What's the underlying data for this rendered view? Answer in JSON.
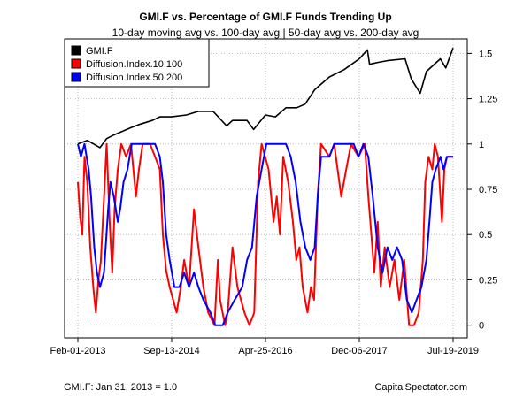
{
  "chart_data": {
    "type": "line",
    "title": "GMI.F vs. Percentage of GMI.F Funds Trending Up",
    "subtitle": "10-day moving avg vs. 100-day avg | 50-day avg vs. 200-day avg",
    "x_tick_labels": [
      "Feb-01-2013",
      "Sep-13-2014",
      "Apr-25-2016",
      "Dec-06-2017",
      "Jul-19-2019"
    ],
    "y_ticks": [
      0,
      0.25,
      0.5,
      0.75,
      1,
      1.25,
      1.5
    ],
    "y_tick_labels": [
      "0",
      "0.25",
      "0.5",
      "0.75",
      "1",
      "1.25",
      "1.5"
    ],
    "ylim": [
      -0.07,
      1.58
    ],
    "xlim": [
      "2013-02-01",
      "2019-07-19"
    ],
    "grid": true,
    "legend_position": "top-left",
    "footnote_left": "GMI.F: Jan 31, 2013 = 1.0",
    "footnote_right": "CapitalSpectator.com",
    "series": [
      {
        "name": "GMI.F",
        "color": "#000000",
        "points": [
          [
            "2013-02-01",
            1.0
          ],
          [
            "2013-04-01",
            1.02
          ],
          [
            "2013-06-20",
            0.98
          ],
          [
            "2013-08-01",
            1.03
          ],
          [
            "2013-09-15",
            1.05
          ],
          [
            "2013-12-31",
            1.09
          ],
          [
            "2014-03-01",
            1.11
          ],
          [
            "2014-05-15",
            1.13
          ],
          [
            "2014-07-01",
            1.15
          ],
          [
            "2014-09-13",
            1.15
          ],
          [
            "2014-12-15",
            1.16
          ],
          [
            "2015-03-01",
            1.18
          ],
          [
            "2015-06-01",
            1.18
          ],
          [
            "2015-08-25",
            1.1
          ],
          [
            "2015-10-01",
            1.13
          ],
          [
            "2015-12-31",
            1.13
          ],
          [
            "2016-02-11",
            1.08
          ],
          [
            "2016-04-25",
            1.16
          ],
          [
            "2016-06-27",
            1.15
          ],
          [
            "2016-09-01",
            1.2
          ],
          [
            "2016-11-08",
            1.2
          ],
          [
            "2016-12-31",
            1.22
          ],
          [
            "2017-03-01",
            1.3
          ],
          [
            "2017-06-01",
            1.37
          ],
          [
            "2017-09-01",
            1.41
          ],
          [
            "2017-12-06",
            1.47
          ],
          [
            "2018-01-26",
            1.52
          ],
          [
            "2018-02-09",
            1.44
          ],
          [
            "2018-04-01",
            1.45
          ],
          [
            "2018-06-01",
            1.46
          ],
          [
            "2018-09-20",
            1.47
          ],
          [
            "2018-10-29",
            1.36
          ],
          [
            "2018-12-24",
            1.28
          ],
          [
            "2019-02-01",
            1.4
          ],
          [
            "2019-04-30",
            1.47
          ],
          [
            "2019-06-03",
            1.42
          ],
          [
            "2019-07-19",
            1.53
          ]
        ]
      },
      {
        "name": "Diffusion.Index.10.100",
        "color": "#ff0000",
        "points": [
          [
            "2013-02-01",
            0.79
          ],
          [
            "2013-02-15",
            0.6
          ],
          [
            "2013-03-01",
            0.5
          ],
          [
            "2013-03-15",
            0.93
          ],
          [
            "2013-04-01",
            0.79
          ],
          [
            "2013-04-20",
            0.43
          ],
          [
            "2013-05-10",
            0.2
          ],
          [
            "2013-05-25",
            0.07
          ],
          [
            "2013-06-10",
            0.25
          ],
          [
            "2013-06-25",
            0.35
          ],
          [
            "2013-07-15",
            0.7
          ],
          [
            "2013-08-01",
            1.0
          ],
          [
            "2013-08-20",
            0.57
          ],
          [
            "2013-09-05",
            0.29
          ],
          [
            "2013-09-20",
            0.64
          ],
          [
            "2013-10-10",
            0.86
          ],
          [
            "2013-11-01",
            1.0
          ],
          [
            "2013-12-01",
            0.93
          ],
          [
            "2014-01-01",
            1.0
          ],
          [
            "2014-02-01",
            0.71
          ],
          [
            "2014-02-20",
            0.86
          ],
          [
            "2014-03-15",
            1.0
          ],
          [
            "2014-05-01",
            1.0
          ],
          [
            "2014-06-01",
            0.93
          ],
          [
            "2014-07-01",
            0.86
          ],
          [
            "2014-07-20",
            0.5
          ],
          [
            "2014-08-10",
            0.3
          ],
          [
            "2014-09-01",
            0.21
          ],
          [
            "2014-10-15",
            0.07
          ],
          [
            "2014-11-10",
            0.21
          ],
          [
            "2014-12-01",
            0.36
          ],
          [
            "2015-01-01",
            0.21
          ],
          [
            "2015-02-01",
            0.64
          ],
          [
            "2015-03-01",
            0.43
          ],
          [
            "2015-04-01",
            0.21
          ],
          [
            "2015-05-01",
            0.07
          ],
          [
            "2015-06-10",
            0.0
          ],
          [
            "2015-07-01",
            0.36
          ],
          [
            "2015-07-15",
            0.14
          ],
          [
            "2015-08-15",
            0.0
          ],
          [
            "2015-09-01",
            0.07
          ],
          [
            "2015-10-01",
            0.43
          ],
          [
            "2015-11-01",
            0.21
          ],
          [
            "2015-12-15",
            0.07
          ],
          [
            "2016-01-15",
            0.0
          ],
          [
            "2016-02-15",
            0.07
          ],
          [
            "2016-03-10",
            0.79
          ],
          [
            "2016-04-01",
            1.0
          ],
          [
            "2016-05-15",
            0.86
          ],
          [
            "2016-06-15",
            0.57
          ],
          [
            "2016-07-05",
            0.71
          ],
          [
            "2016-07-25",
            0.5
          ],
          [
            "2016-08-15",
            0.93
          ],
          [
            "2016-09-15",
            0.79
          ],
          [
            "2016-10-15",
            0.57
          ],
          [
            "2016-11-05",
            0.36
          ],
          [
            "2016-11-25",
            0.43
          ],
          [
            "2016-12-15",
            0.21
          ],
          [
            "2017-01-15",
            0.07
          ],
          [
            "2017-02-05",
            0.21
          ],
          [
            "2017-02-25",
            0.14
          ],
          [
            "2017-03-20",
            0.71
          ],
          [
            "2017-04-10",
            1.0
          ],
          [
            "2017-06-01",
            0.93
          ],
          [
            "2017-07-01",
            1.0
          ],
          [
            "2017-08-15",
            0.71
          ],
          [
            "2017-09-15",
            0.86
          ],
          [
            "2017-10-15",
            1.0
          ],
          [
            "2017-12-01",
            0.93
          ],
          [
            "2018-01-10",
            1.0
          ],
          [
            "2018-02-01",
            0.71
          ],
          [
            "2018-02-20",
            0.5
          ],
          [
            "2018-03-10",
            0.29
          ],
          [
            "2018-04-01",
            0.57
          ],
          [
            "2018-04-20",
            0.21
          ],
          [
            "2018-05-15",
            0.43
          ],
          [
            "2018-06-15",
            0.21
          ],
          [
            "2018-07-15",
            0.36
          ],
          [
            "2018-08-15",
            0.14
          ],
          [
            "2018-09-15",
            0.36
          ],
          [
            "2018-10-15",
            0.0
          ],
          [
            "2018-11-15",
            0.0
          ],
          [
            "2018-12-15",
            0.07
          ],
          [
            "2019-01-10",
            0.36
          ],
          [
            "2019-01-25",
            0.79
          ],
          [
            "2019-02-15",
            0.93
          ],
          [
            "2019-03-10",
            0.86
          ],
          [
            "2019-03-25",
            1.0
          ],
          [
            "2019-04-15",
            0.93
          ],
          [
            "2019-05-10",
            0.57
          ],
          [
            "2019-05-25",
            0.86
          ],
          [
            "2019-06-10",
            0.93
          ],
          [
            "2019-07-19",
            0.93
          ]
        ]
      },
      {
        "name": "Diffusion.Index.50.200",
        "color": "#0000ff",
        "points": [
          [
            "2013-02-01",
            1.0
          ],
          [
            "2013-02-20",
            0.93
          ],
          [
            "2013-03-15",
            1.0
          ],
          [
            "2013-04-10",
            0.86
          ],
          [
            "2013-04-25",
            0.71
          ],
          [
            "2013-05-15",
            0.43
          ],
          [
            "2013-06-01",
            0.29
          ],
          [
            "2013-06-20",
            0.21
          ],
          [
            "2013-07-15",
            0.29
          ],
          [
            "2013-08-10",
            0.64
          ],
          [
            "2013-08-25",
            0.79
          ],
          [
            "2013-09-15",
            0.71
          ],
          [
            "2013-10-10",
            0.57
          ],
          [
            "2013-10-25",
            0.64
          ],
          [
            "2013-11-15",
            0.79
          ],
          [
            "2013-12-10",
            0.86
          ],
          [
            "2014-01-05",
            1.0
          ],
          [
            "2014-06-01",
            1.0
          ],
          [
            "2014-07-01",
            0.93
          ],
          [
            "2014-07-20",
            0.79
          ],
          [
            "2014-08-10",
            0.5
          ],
          [
            "2014-09-01",
            0.36
          ],
          [
            "2014-10-01",
            0.21
          ],
          [
            "2014-11-01",
            0.21
          ],
          [
            "2014-12-01",
            0.29
          ],
          [
            "2015-01-01",
            0.21
          ],
          [
            "2015-02-01",
            0.29
          ],
          [
            "2015-03-01",
            0.21
          ],
          [
            "2015-04-01",
            0.14
          ],
          [
            "2015-05-15",
            0.07
          ],
          [
            "2015-06-15",
            0.0
          ],
          [
            "2015-08-01",
            0.0
          ],
          [
            "2015-09-01",
            0.07
          ],
          [
            "2015-10-15",
            0.14
          ],
          [
            "2015-12-01",
            0.21
          ],
          [
            "2016-01-01",
            0.36
          ],
          [
            "2016-02-01",
            0.43
          ],
          [
            "2016-03-01",
            0.71
          ],
          [
            "2016-04-01",
            0.86
          ],
          [
            "2016-05-01",
            1.0
          ],
          [
            "2016-09-01",
            1.0
          ],
          [
            "2016-10-01",
            0.93
          ],
          [
            "2016-11-01",
            0.79
          ],
          [
            "2016-12-01",
            0.57
          ],
          [
            "2017-01-01",
            0.43
          ],
          [
            "2017-02-01",
            0.36
          ],
          [
            "2017-03-01",
            0.43
          ],
          [
            "2017-03-20",
            0.71
          ],
          [
            "2017-04-10",
            0.93
          ],
          [
            "2017-06-01",
            0.93
          ],
          [
            "2017-07-01",
            1.0
          ],
          [
            "2017-11-01",
            1.0
          ],
          [
            "2017-12-01",
            0.93
          ],
          [
            "2018-01-01",
            1.0
          ],
          [
            "2018-02-01",
            0.93
          ],
          [
            "2018-03-01",
            0.71
          ],
          [
            "2018-04-01",
            0.43
          ],
          [
            "2018-05-01",
            0.29
          ],
          [
            "2018-06-01",
            0.43
          ],
          [
            "2018-07-01",
            0.36
          ],
          [
            "2018-08-01",
            0.43
          ],
          [
            "2018-09-01",
            0.36
          ],
          [
            "2018-10-01",
            0.14
          ],
          [
            "2018-11-01",
            0.07
          ],
          [
            "2018-12-01",
            0.14
          ],
          [
            "2019-01-01",
            0.21
          ],
          [
            "2019-02-01",
            0.36
          ],
          [
            "2019-02-20",
            0.57
          ],
          [
            "2019-03-10",
            0.79
          ],
          [
            "2019-04-01",
            0.86
          ],
          [
            "2019-05-01",
            0.93
          ],
          [
            "2019-05-20",
            0.86
          ],
          [
            "2019-06-10",
            0.93
          ],
          [
            "2019-07-19",
            0.93
          ]
        ]
      }
    ]
  }
}
